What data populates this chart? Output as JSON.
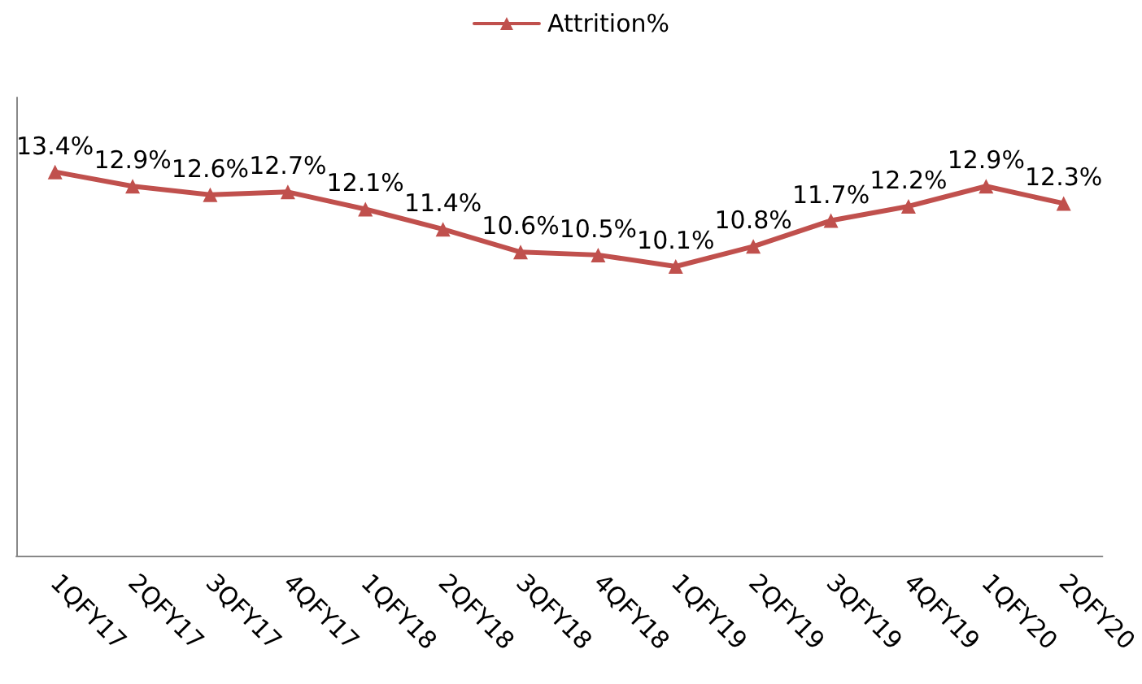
{
  "chart_data": {
    "type": "line",
    "categories": [
      "1QFY17",
      "2QFY17",
      "3QFY17",
      "4QFY17",
      "1QFY18",
      "2QFY18",
      "3QFY18",
      "4QFY18",
      "1QFY19",
      "2QFY19",
      "3QFY19",
      "4QFY19",
      "1QFY20",
      "2QFY20"
    ],
    "series": [
      {
        "name": "Attrition%",
        "color": "#c0504d",
        "values": [
          13.4,
          12.9,
          12.6,
          12.7,
          12.1,
          11.4,
          10.6,
          10.5,
          10.1,
          10.8,
          11.7,
          12.2,
          12.9,
          12.3
        ],
        "value_labels": [
          "13.4%",
          "12.9%",
          "12.6%",
          "12.7%",
          "12.1%",
          "11.4%",
          "10.6%",
          "10.5%",
          "10.1%",
          "10.8%",
          "11.7%",
          "12.2%",
          "12.9%",
          "12.3%"
        ]
      }
    ],
    "ylim": [
      0,
      16
    ],
    "tick_labels": "x",
    "legend": "top",
    "marker": "triangle",
    "grid": false,
    "line_style": "solid"
  }
}
